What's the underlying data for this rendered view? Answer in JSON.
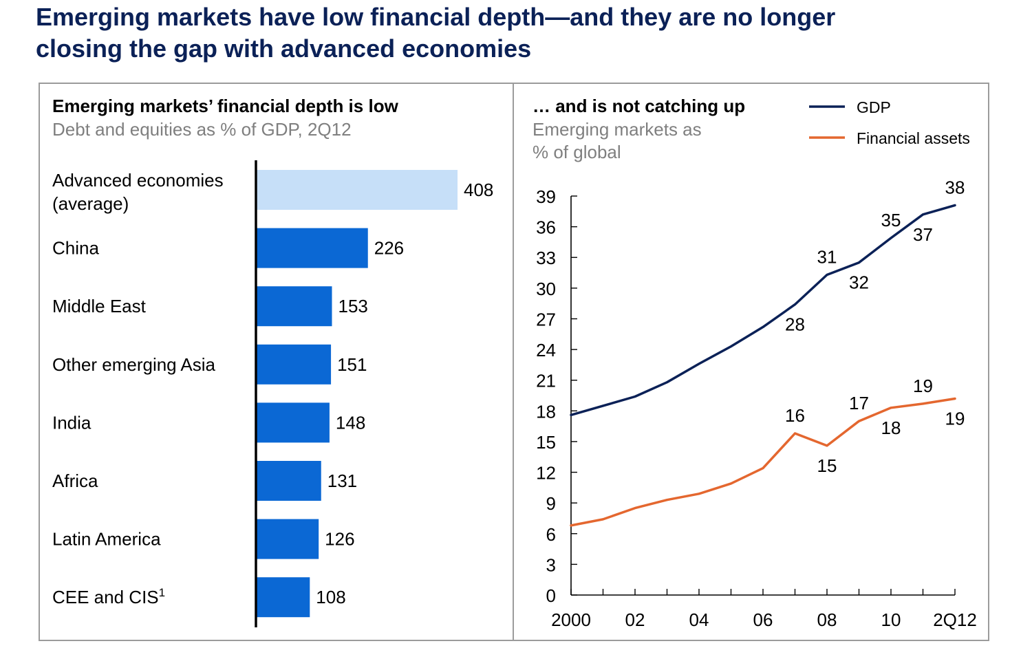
{
  "title": {
    "line1": "Emerging markets have low financial depth—and they are no longer",
    "line2": "closing the gap with advanced economies"
  },
  "colors": {
    "title": "#0b2157",
    "advanced_bar": "#c6dff8",
    "bar": "#0b68d4",
    "gdp_line": "#0b2157",
    "assets_line": "#e4672f",
    "frame": "#9b9b9b",
    "subtitle": "#7f7f7f"
  },
  "chart_data": [
    {
      "type": "bar",
      "orientation": "horizontal",
      "title": "Emerging markets’ financial depth is low",
      "subtitle": "Debt and equities as % of GDP, 2Q12",
      "categories": [
        [
          "Advanced economies",
          "(average)"
        ],
        [
          "China"
        ],
        [
          "Middle East"
        ],
        [
          "Other emerging Asia"
        ],
        [
          "India"
        ],
        [
          "Africa"
        ],
        [
          "Latin America"
        ],
        [
          "CEE and CIS"
        ]
      ],
      "footnote_marks": [
        "",
        "",
        "",
        "",
        "",
        "",
        "",
        "1"
      ],
      "values": [
        408,
        226,
        153,
        151,
        148,
        131,
        126,
        108
      ],
      "value_labels": [
        "408",
        "226",
        "153",
        "151",
        "148",
        "131",
        "126",
        "108"
      ],
      "xlim": [
        0,
        410
      ]
    },
    {
      "type": "line",
      "title": "… and is not catching up",
      "subtitle": [
        "Emerging markets as",
        "% of global"
      ],
      "x": [
        2000,
        2001,
        2002,
        2003,
        2004,
        2005,
        2006,
        2007,
        2008,
        2009,
        2010,
        2011,
        2012
      ],
      "x_tick_labels": [
        "2000",
        "02",
        "04",
        "06",
        "08",
        "10",
        "2Q12"
      ],
      "x_tick_label_positions": [
        2000,
        2002,
        2004,
        2006,
        2008,
        2010,
        2012
      ],
      "ylim": [
        0,
        39
      ],
      "y_ticks": [
        0,
        3,
        6,
        9,
        12,
        15,
        18,
        21,
        24,
        27,
        30,
        33,
        36,
        39
      ],
      "legend": {
        "placement": "top-right",
        "entries": [
          "GDP",
          "Financial assets"
        ]
      },
      "series": [
        {
          "name": "GDP",
          "values": [
            17.6,
            18.5,
            19.4,
            20.8,
            22.6,
            24.3,
            26.2,
            28.4,
            31.3,
            32.5,
            34.9,
            37.2,
            38.1
          ],
          "point_labels": [
            {
              "x": 2007,
              "text": "28",
              "place": "below"
            },
            {
              "x": 2008,
              "text": "31",
              "place": "above"
            },
            {
              "x": 2009,
              "text": "32",
              "place": "below"
            },
            {
              "x": 2010,
              "text": "35",
              "place": "above"
            },
            {
              "x": 2011,
              "text": "37",
              "place": "below"
            },
            {
              "x": 2012,
              "text": "38",
              "place": "above"
            }
          ]
        },
        {
          "name": "Financial assets",
          "values": [
            6.8,
            7.4,
            8.5,
            9.3,
            9.9,
            10.9,
            12.4,
            15.8,
            14.6,
            17.0,
            18.3,
            18.7,
            19.2
          ],
          "point_labels": [
            {
              "x": 2007,
              "text": "16",
              "place": "above"
            },
            {
              "x": 2008,
              "text": "15",
              "place": "below"
            },
            {
              "x": 2009,
              "text": "17",
              "place": "above"
            },
            {
              "x": 2010,
              "text": "18",
              "place": "below"
            },
            {
              "x": 2011,
              "text": "19",
              "place": "above"
            },
            {
              "x": 2012,
              "text": "19",
              "place": "below"
            }
          ]
        }
      ]
    }
  ]
}
